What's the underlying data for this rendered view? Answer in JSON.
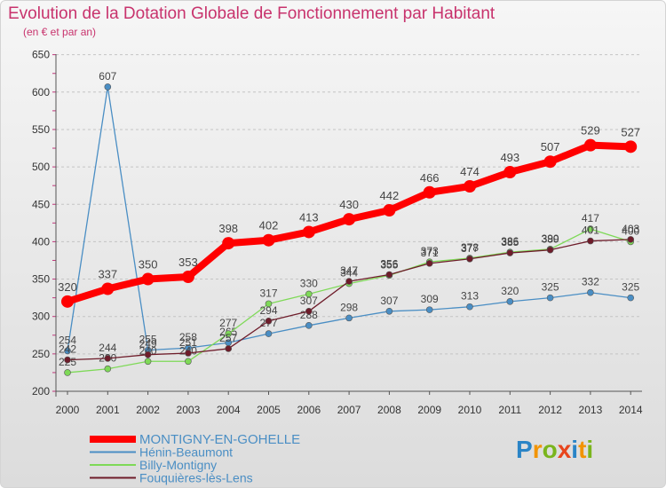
{
  "chart_data": {
    "type": "line",
    "title": "Evolution de la Dotation Globale de Fonctionnement par Habitant",
    "subtitle": "(en € et par an)",
    "xlabel": "",
    "ylabel": "",
    "ylim": [
      200,
      650
    ],
    "yticks": [
      200,
      250,
      300,
      350,
      400,
      450,
      500,
      550,
      600,
      650
    ],
    "grid": "horizontal dashed",
    "legend_position": "bottom-left",
    "categories": [
      "2000",
      "2001",
      "2002",
      "2003",
      "2004",
      "2005",
      "2006",
      "2007",
      "2008",
      "2009",
      "2010",
      "2011",
      "2012",
      "2013",
      "2014"
    ],
    "series": [
      {
        "name": "Hénin-Beaumont",
        "color": "#4a8ec4",
        "values": [
          254,
          607,
          255,
          258,
          265,
          277,
          288,
          298,
          307,
          309,
          313,
          320,
          325,
          332,
          325
        ],
        "labels": [
          "254",
          "607",
          "255",
          "258",
          "265",
          "277",
          "288",
          "298",
          "307",
          "309",
          "313",
          "320",
          "325",
          "332",
          "325"
        ]
      },
      {
        "name": "Billy-Montigny",
        "color": "#7ed957",
        "values": [
          225,
          230,
          240,
          240,
          277,
          317,
          330,
          344,
          355,
          373,
          378,
          386,
          390,
          417,
          400
        ],
        "labels": [
          "225",
          "230",
          "240",
          "240",
          "277",
          "317",
          "330",
          "344",
          "355",
          "373",
          "378",
          "386",
          "390",
          "417",
          "400"
        ]
      },
      {
        "name": "Fouquières-lès-Lens",
        "color": "#6e1c2a",
        "values": [
          242,
          244,
          249,
          251,
          257,
          294,
          307,
          347,
          356,
          371,
          377,
          385,
          389,
          401,
          403
        ],
        "labels": [
          "242",
          "244",
          "249",
          "251",
          "257",
          "294",
          "307",
          "347",
          "356",
          "371",
          "377",
          "385",
          "389",
          "401",
          "403"
        ]
      },
      {
        "name": "MONTIGNY-EN-GOHELLE",
        "color": "#ff0000",
        "values": [
          320,
          337,
          350,
          353,
          398,
          402,
          413,
          430,
          442,
          466,
          474,
          493,
          507,
          529,
          527
        ],
        "labels": [
          "320",
          "337",
          "350",
          "353",
          "398",
          "402",
          "413",
          "430",
          "442",
          "466",
          "474",
          "493",
          "507",
          "529",
          "527"
        ]
      }
    ],
    "legend": [
      {
        "name": "MONTIGNY-EN-GOHELLE",
        "color": "#ff0000"
      },
      {
        "name": "Hénin-Beaumont",
        "color": "#4a8ec4"
      },
      {
        "name": "Billy-Montigny",
        "color": "#7ed957"
      },
      {
        "name": "Fouquières-lès-Lens",
        "color": "#6e1c2a"
      }
    ]
  },
  "logo": {
    "letters": [
      "P",
      "r",
      "o",
      "x",
      "i",
      "t",
      "i"
    ],
    "colors": [
      "#2a84c6",
      "#f29400",
      "#7ab51d",
      "#e8451d",
      "#2a84c6",
      "#f29400",
      "#7ab51d"
    ]
  }
}
